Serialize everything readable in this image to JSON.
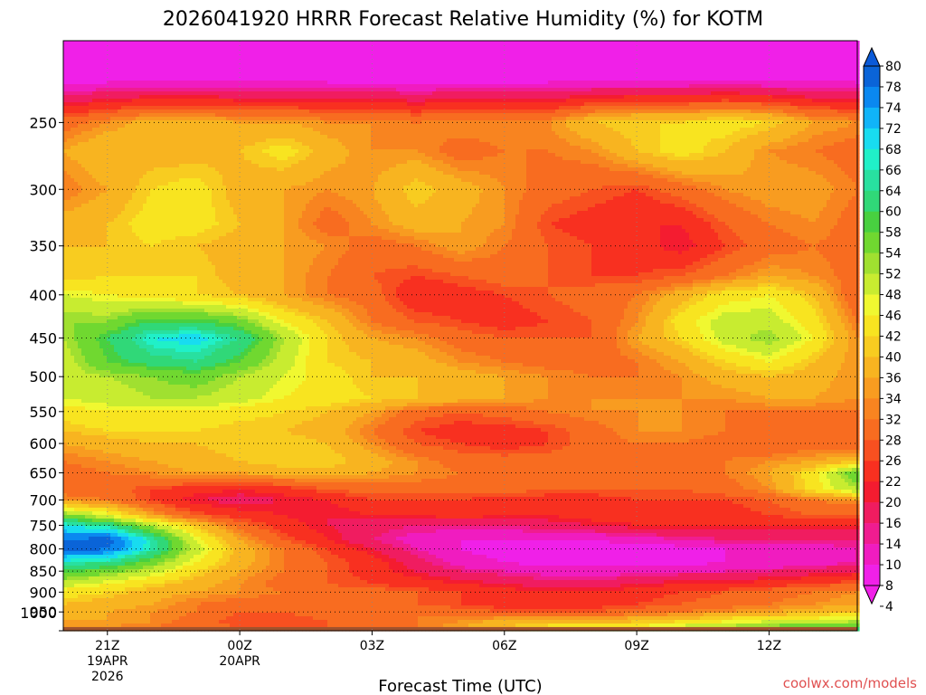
{
  "chart_data": {
    "type": "heatmap",
    "title": "2026041920 HRRR Forecast Relative Humidity (%) for KOTM",
    "xlabel": "Forecast Time (UTC)",
    "ylabel": "",
    "x_ticks": [
      {
        "hour": 0,
        "lines": [
          "21Z",
          "19APR",
          "2026"
        ]
      },
      {
        "hour": 3,
        "lines": [
          "00Z",
          "20APR"
        ]
      },
      {
        "hour": 6,
        "lines": [
          "03Z"
        ]
      },
      {
        "hour": 9,
        "lines": [
          "06Z"
        ]
      },
      {
        "hour": 12,
        "lines": [
          "09Z"
        ]
      },
      {
        "hour": 15,
        "lines": [
          "12Z"
        ]
      }
    ],
    "x_range_hours": [
      -1,
      17
    ],
    "y_ticks": [
      250,
      300,
      350,
      400,
      450,
      500,
      550,
      600,
      650,
      700,
      750,
      800,
      850,
      900,
      950,
      1000
    ],
    "y_range_mb": [
      200,
      1000
    ],
    "y_scale": "log-pressure",
    "surface_below_mb": 990,
    "levels_mb": [
      220,
      250,
      270,
      300,
      330,
      350,
      380,
      400,
      430,
      450,
      480,
      500,
      530,
      550,
      580,
      600,
      630,
      650,
      680,
      700,
      730,
      750,
      780,
      800,
      830,
      850,
      880,
      900,
      930,
      950,
      975,
      990
    ],
    "hours": [
      -1,
      0,
      1,
      2,
      3,
      4,
      5,
      6,
      7,
      8,
      9,
      10,
      11,
      12,
      13,
      14,
      15,
      16,
      17
    ],
    "rh": [
      [
        6,
        6,
        6,
        6,
        6,
        6,
        6,
        6,
        6,
        6,
        6,
        6,
        6,
        6,
        6,
        6,
        6,
        6,
        6
      ],
      [
        30,
        34,
        38,
        38,
        36,
        36,
        34,
        34,
        32,
        34,
        34,
        34,
        40,
        42,
        42,
        44,
        42,
        36,
        34
      ],
      [
        36,
        40,
        38,
        38,
        40,
        44,
        38,
        34,
        34,
        30,
        32,
        32,
        34,
        40,
        44,
        40,
        34,
        32,
        30
      ],
      [
        32,
        36,
        42,
        44,
        38,
        36,
        34,
        36,
        42,
        38,
        34,
        30,
        28,
        26,
        30,
        34,
        36,
        36,
        32
      ],
      [
        38,
        40,
        44,
        44,
        40,
        36,
        30,
        34,
        38,
        36,
        34,
        26,
        24,
        22,
        22,
        28,
        32,
        34,
        30
      ],
      [
        40,
        40,
        42,
        40,
        38,
        36,
        34,
        30,
        32,
        36,
        32,
        28,
        26,
        24,
        20,
        26,
        30,
        32,
        30
      ],
      [
        40,
        42,
        42,
        42,
        38,
        36,
        32,
        28,
        26,
        28,
        30,
        28,
        26,
        26,
        28,
        32,
        36,
        34,
        30
      ],
      [
        48,
        46,
        44,
        42,
        40,
        36,
        32,
        30,
        22,
        24,
        26,
        28,
        30,
        32,
        38,
        44,
        46,
        40,
        28
      ],
      [
        54,
        54,
        60,
        60,
        56,
        46,
        40,
        32,
        28,
        26,
        24,
        26,
        28,
        34,
        44,
        50,
        50,
        44,
        32
      ],
      [
        52,
        60,
        68,
        70,
        64,
        52,
        42,
        36,
        34,
        30,
        28,
        28,
        28,
        36,
        42,
        50,
        54,
        46,
        34
      ],
      [
        50,
        58,
        62,
        64,
        58,
        50,
        42,
        40,
        38,
        34,
        32,
        30,
        30,
        32,
        36,
        42,
        46,
        40,
        34
      ],
      [
        50,
        52,
        54,
        56,
        52,
        48,
        44,
        40,
        40,
        38,
        36,
        34,
        32,
        32,
        34,
        38,
        40,
        38,
        34
      ],
      [
        48,
        50,
        52,
        52,
        50,
        46,
        44,
        42,
        40,
        38,
        36,
        34,
        34,
        34,
        34,
        34,
        36,
        36,
        34
      ],
      [
        44,
        46,
        46,
        46,
        44,
        42,
        40,
        36,
        30,
        28,
        30,
        32,
        34,
        34,
        34,
        32,
        32,
        32,
        32
      ],
      [
        40,
        42,
        42,
        42,
        40,
        40,
        38,
        32,
        26,
        24,
        24,
        26,
        30,
        34,
        34,
        32,
        30,
        28,
        28
      ],
      [
        36,
        38,
        40,
        40,
        42,
        42,
        40,
        34,
        28,
        26,
        24,
        26,
        30,
        32,
        32,
        30,
        28,
        30,
        28
      ],
      [
        32,
        34,
        36,
        38,
        40,
        42,
        42,
        38,
        34,
        30,
        30,
        30,
        30,
        30,
        28,
        32,
        34,
        36,
        40
      ],
      [
        30,
        32,
        34,
        36,
        36,
        38,
        38,
        36,
        34,
        32,
        30,
        30,
        28,
        28,
        28,
        32,
        36,
        44,
        58
      ],
      [
        30,
        30,
        26,
        24,
        22,
        24,
        28,
        30,
        30,
        30,
        30,
        28,
        28,
        28,
        28,
        30,
        34,
        44,
        52
      ],
      [
        34,
        32,
        26,
        20,
        18,
        20,
        22,
        26,
        26,
        26,
        24,
        24,
        24,
        26,
        26,
        26,
        28,
        32,
        34
      ],
      [
        56,
        48,
        36,
        28,
        24,
        22,
        20,
        22,
        22,
        24,
        22,
        22,
        24,
        24,
        24,
        24,
        26,
        28,
        28
      ],
      [
        68,
        64,
        52,
        40,
        30,
        24,
        20,
        18,
        16,
        16,
        16,
        18,
        20,
        22,
        22,
        22,
        22,
        22,
        22
      ],
      [
        78,
        80,
        66,
        48,
        36,
        28,
        22,
        16,
        12,
        10,
        10,
        10,
        10,
        12,
        14,
        16,
        16,
        16,
        16
      ],
      [
        80,
        78,
        66,
        50,
        38,
        32,
        26,
        20,
        14,
        10,
        8,
        8,
        8,
        8,
        8,
        10,
        10,
        12,
        14
      ],
      [
        66,
        64,
        56,
        46,
        38,
        32,
        28,
        24,
        18,
        12,
        10,
        8,
        8,
        8,
        8,
        10,
        10,
        12,
        14
      ],
      [
        60,
        56,
        50,
        42,
        36,
        32,
        28,
        24,
        20,
        16,
        14,
        12,
        12,
        12,
        14,
        14,
        16,
        18,
        20
      ],
      [
        50,
        46,
        42,
        38,
        34,
        30,
        28,
        26,
        24,
        22,
        20,
        18,
        18,
        20,
        22,
        22,
        24,
        26,
        28
      ],
      [
        44,
        42,
        38,
        36,
        34,
        32,
        30,
        30,
        28,
        26,
        24,
        22,
        22,
        24,
        26,
        28,
        30,
        32,
        34
      ],
      [
        40,
        38,
        36,
        32,
        30,
        30,
        30,
        28,
        28,
        26,
        24,
        24,
        24,
        26,
        28,
        30,
        32,
        34,
        36
      ],
      [
        38,
        36,
        34,
        32,
        28,
        28,
        30,
        32,
        32,
        30,
        28,
        28,
        28,
        30,
        32,
        34,
        36,
        38,
        40
      ],
      [
        36,
        36,
        34,
        30,
        26,
        26,
        28,
        30,
        32,
        34,
        38,
        38,
        38,
        40,
        42,
        46,
        48,
        50,
        52
      ],
      [
        34,
        34,
        32,
        30,
        28,
        28,
        28,
        30,
        32,
        36,
        40,
        44,
        46,
        48,
        50,
        54,
        56,
        58,
        60
      ]
    ],
    "colorbar_labels": [
      "80",
      "78",
      "74",
      "72",
      "68",
      "66",
      "64",
      "60",
      "58",
      "54",
      "52",
      "48",
      "46",
      "42",
      "40",
      "36",
      "34",
      "32",
      "28",
      "26",
      "22",
      "20",
      "16",
      "14",
      "10",
      "8",
      "4"
    ],
    "colorbar_colors": [
      "#0a64d8",
      "#0a88f0",
      "#10b4f8",
      "#18dcf0",
      "#20f0c8",
      "#28e0a0",
      "#30d878",
      "#48d040",
      "#70d830",
      "#a0e030",
      "#c8ec30",
      "#f0f830",
      "#f8e420",
      "#f8cc20",
      "#f8b420",
      "#f89c20",
      "#f88420",
      "#f86c20",
      "#f85020",
      "#f83020",
      "#f41c30",
      "#f01c60",
      "#f01c90",
      "#f01cc0",
      "#f020e8"
    ],
    "cb_top_color": "#0a5ad8",
    "cb_bottom_color": "#f020e8",
    "ground_color": "#a0522d",
    "credit": "coolwx.com/models",
    "grid": "dotted"
  }
}
